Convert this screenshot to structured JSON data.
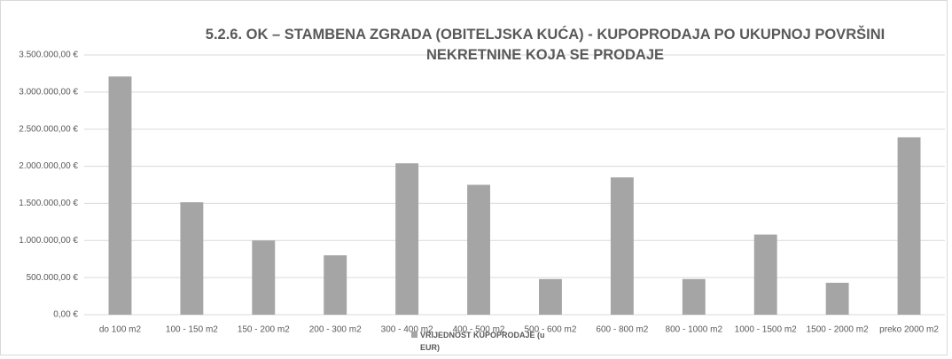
{
  "chart_data": {
    "type": "bar",
    "title": "5.2.6. OK – STAMBENA ZGRADA (OBITELJSKA KUĆA) - KUPOPRODAJA PO UKUPNOJ POVRŠINI NEKRETNINE KOJA SE PRODAJE",
    "categories": [
      "do 100 m2",
      "100 - 150 m2",
      "150 - 200 m2",
      "200 - 300 m2",
      "300 - 400 m2",
      "400 - 500 m2",
      "500 - 600 m2",
      "600 - 800 m2",
      "800 - 1000 m2",
      "1000 - 1500 m2",
      "1500 - 2000 m2",
      "preko 2000 m2"
    ],
    "series": [
      {
        "name": "VRIJEDNOST KUPOPRODAJE (u EUR)",
        "color": "#a5a5a5",
        "values": [
          3210000,
          1515000,
          1000000,
          800000,
          2040000,
          1750000,
          480000,
          1850000,
          480000,
          1080000,
          430000,
          2390000
        ]
      }
    ],
    "ylim": [
      0,
      3500000
    ],
    "yticks": [
      {
        "value": 0,
        "label": "0,00 €"
      },
      {
        "value": 500000,
        "label": "500.000,00 €"
      },
      {
        "value": 1000000,
        "label": "1.000.000,00 €"
      },
      {
        "value": 1500000,
        "label": "1.500.000,00 €"
      },
      {
        "value": 2000000,
        "label": "2.000.000,00 €"
      },
      {
        "value": 2500000,
        "label": "2.500.000,00 €"
      },
      {
        "value": 3000000,
        "label": "3.000.000,00 €"
      },
      {
        "value": 3500000,
        "label": "3.500.000,00 €"
      }
    ],
    "grid": true,
    "legend": "bottom"
  }
}
